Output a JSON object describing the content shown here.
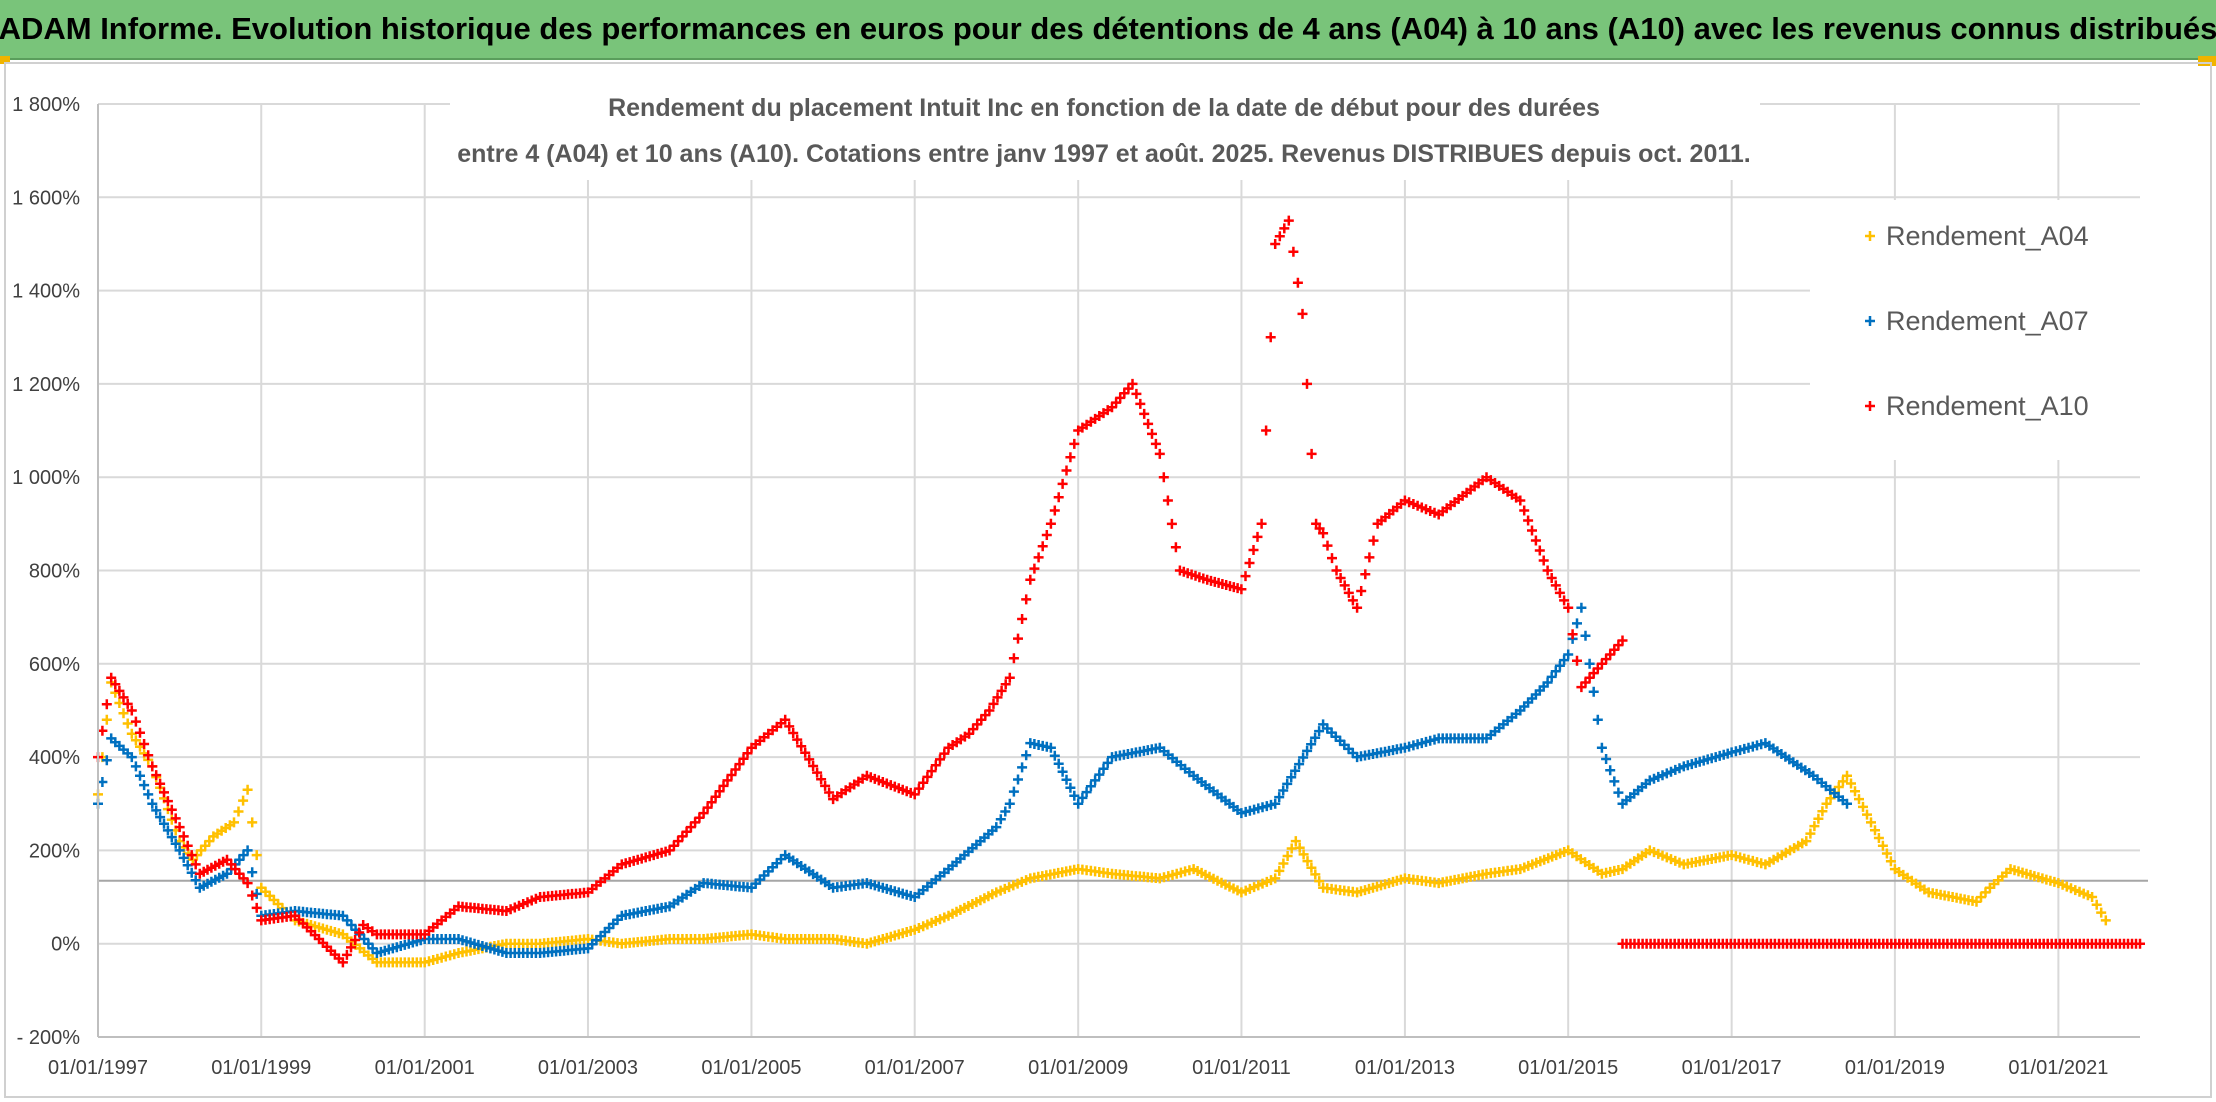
{
  "header": {
    "title": "ADAM Informe. Evolution historique des performances en euros pour des détentions de 4 ans (A04) à 10 ans (A10) avec les revenus connus distribués"
  },
  "chart_data": {
    "type": "scatter",
    "title_line1": "Rendement du placement Intuit Inc en fonction de la date de début pour des durées",
    "title_line2": "entre 4 (A04) et 10 ans (A10). Cotations entre janv 1997 et août. 2025. Revenus DISTRIBUES depuis oct. 2011.",
    "xlabel": "",
    "ylabel": "",
    "y_unit": "%",
    "ylim": [
      -200,
      1800
    ],
    "xlim": [
      "1997-01-01",
      "2022-01-01"
    ],
    "y_ticks": [
      -200,
      0,
      200,
      400,
      600,
      800,
      1000,
      1200,
      1400,
      1600,
      1800
    ],
    "y_tick_labels": [
      "- 200%",
      "0%",
      "200%",
      "400%",
      "600%",
      "800%",
      "1 000%",
      "1 200%",
      "1 400%",
      "1 600%",
      "1 800%"
    ],
    "x_ticks": [
      "1997-01-01",
      "1999-01-01",
      "2001-01-01",
      "2003-01-01",
      "2005-01-01",
      "2007-01-01",
      "2009-01-01",
      "2011-01-01",
      "2013-01-01",
      "2015-01-01",
      "2017-01-01",
      "2019-01-01",
      "2021-01-01"
    ],
    "x_tick_labels": [
      "01/01/1997",
      "01/01/1999",
      "01/01/2001",
      "01/01/2003",
      "01/01/2005",
      "01/01/2007",
      "01/01/2009",
      "01/01/2011",
      "01/01/2013",
      "01/01/2015",
      "01/01/2017",
      "01/01/2019",
      "01/01/2021"
    ],
    "grid": true,
    "marker": "+",
    "reference_line_y": 135,
    "legend_position": "right",
    "series": [
      {
        "name": "Rendement_A04",
        "color": "#ffc000",
        "x": [
          "1997-01-01",
          "1997-03-01",
          "1997-06-01",
          "1997-09-01",
          "1998-01-01",
          "1998-03-01",
          "1998-06-01",
          "1998-09-01",
          "1998-11-01",
          "1999-01-01",
          "1999-06-01",
          "2000-01-01",
          "2000-06-01",
          "2001-01-01",
          "2001-06-01",
          "2002-01-01",
          "2002-06-01",
          "2003-01-01",
          "2003-06-01",
          "2004-01-01",
          "2004-06-01",
          "2005-01-01",
          "2005-06-01",
          "2006-01-01",
          "2006-06-01",
          "2007-01-01",
          "2007-06-01",
          "2008-01-01",
          "2008-06-01",
          "2009-01-01",
          "2009-06-01",
          "2010-01-01",
          "2010-06-01",
          "2011-01-01",
          "2011-06-01",
          "2011-09-01",
          "2012-01-01",
          "2012-06-01",
          "2013-01-01",
          "2013-06-01",
          "2014-01-01",
          "2014-06-01",
          "2015-01-01",
          "2015-06-01",
          "2015-09-01",
          "2016-01-01",
          "2016-06-01",
          "2017-01-01",
          "2017-06-01",
          "2017-12-01",
          "2018-03-01",
          "2018-06-01",
          "2019-01-01",
          "2019-06-01",
          "2020-01-01",
          "2020-03-01",
          "2020-06-01",
          "2021-01-01",
          "2021-06-01",
          "2021-08-01"
        ],
        "y": [
          320,
          560,
          450,
          380,
          220,
          180,
          230,
          260,
          330,
          120,
          50,
          20,
          -40,
          -40,
          -20,
          0,
          0,
          10,
          0,
          10,
          10,
          20,
          10,
          10,
          0,
          30,
          60,
          110,
          140,
          160,
          150,
          140,
          160,
          110,
          140,
          220,
          120,
          110,
          140,
          130,
          150,
          160,
          200,
          150,
          160,
          200,
          170,
          190,
          170,
          220,
          300,
          360,
          160,
          110,
          90,
          120,
          160,
          130,
          100,
          50
        ]
      },
      {
        "name": "Rendement_A07",
        "color": "#0070c0",
        "x": [
          "1997-01-01",
          "1997-03-01",
          "1997-06-01",
          "1997-09-01",
          "1998-01-01",
          "1998-04-01",
          "1998-08-01",
          "1998-11-01",
          "1999-01-01",
          "1999-06-01",
          "2000-01-01",
          "2000-06-01",
          "2001-01-01",
          "2001-06-01",
          "2002-01-01",
          "2002-06-01",
          "2003-01-01",
          "2003-06-01",
          "2004-01-01",
          "2004-06-01",
          "2005-01-01",
          "2005-06-01",
          "2006-01-01",
          "2006-06-01",
          "2007-01-01",
          "2007-06-01",
          "2008-01-01",
          "2008-03-01",
          "2008-06-01",
          "2008-09-01",
          "2009-01-01",
          "2009-06-01",
          "2010-01-01",
          "2010-06-01",
          "2011-01-01",
          "2011-06-01",
          "2012-01-01",
          "2012-06-01",
          "2013-01-01",
          "2013-06-01",
          "2014-01-01",
          "2014-06-01",
          "2014-10-01",
          "2015-01-01",
          "2015-03-01",
          "2015-06-01",
          "2015-09-01",
          "2016-01-01",
          "2016-06-01",
          "2017-01-01",
          "2017-06-01",
          "2018-01-01",
          "2018-06-01"
        ],
        "y": [
          300,
          440,
          400,
          300,
          200,
          120,
          150,
          200,
          60,
          70,
          60,
          -20,
          10,
          10,
          -20,
          -20,
          -10,
          60,
          80,
          130,
          120,
          190,
          120,
          130,
          100,
          160,
          250,
          300,
          430,
          420,
          300,
          400,
          420,
          360,
          280,
          300,
          470,
          400,
          420,
          440,
          440,
          500,
          560,
          620,
          720,
          420,
          300,
          350,
          380,
          410,
          430,
          360,
          300
        ]
      },
      {
        "name": "Rendement_A10",
        "color": "#ff0000",
        "x": [
          "1997-01-01",
          "1997-03-01",
          "1997-06-01",
          "1997-09-01",
          "1998-01-01",
          "1998-04-01",
          "1998-08-01",
          "1998-11-01",
          "1999-01-01",
          "1999-06-01",
          "2000-01-01",
          "2000-04-01",
          "2000-06-01",
          "2001-01-01",
          "2001-06-01",
          "2002-01-01",
          "2002-06-01",
          "2003-01-01",
          "2003-06-01",
          "2004-01-01",
          "2004-06-01",
          "2005-01-01",
          "2005-06-01",
          "2006-01-01",
          "2006-06-01",
          "2007-01-01",
          "2007-06-01",
          "2007-09-01",
          "2007-12-01",
          "2008-03-01",
          "2008-06-01",
          "2008-09-01",
          "2009-01-01",
          "2009-06-01",
          "2009-09-01",
          "2010-01-01",
          "2010-04-01",
          "2010-08-01",
          "2011-01-01",
          "2011-04-01",
          "2011-06-01",
          "2011-08-01",
          "2011-10-01",
          "2011-12-01",
          "2012-01-01",
          "2012-03-01",
          "2012-06-01",
          "2012-09-01",
          "2013-01-01",
          "2013-06-01",
          "2014-01-01",
          "2014-06-01",
          "2014-10-01",
          "2015-01-01",
          "2015-03-01",
          "2015-06-01",
          "2015-09-01"
        ],
        "y": [
          400,
          570,
          500,
          380,
          250,
          150,
          180,
          130,
          50,
          60,
          -40,
          40,
          20,
          20,
          80,
          70,
          100,
          110,
          170,
          200,
          280,
          420,
          480,
          310,
          360,
          320,
          420,
          450,
          500,
          570,
          780,
          900,
          1100,
          1150,
          1200,
          1050,
          800,
          780,
          760,
          900,
          1500,
          1550,
          1350,
          900,
          880,
          800,
          720,
          900,
          950,
          920,
          1000,
          950,
          800,
          720,
          550,
          600,
          650
        ]
      },
      {
        "name": "Rendement_A10 (zero)",
        "color": "#ff0000",
        "x": [
          "2015-09-01",
          "2022-01-01"
        ],
        "y": [
          0,
          0
        ]
      }
    ]
  },
  "legend": [
    {
      "label": "Rendement_A04",
      "color": "#ffc000"
    },
    {
      "label": "Rendement_A07",
      "color": "#0070c0"
    },
    {
      "label": "Rendement_A10",
      "color": "#ff0000"
    }
  ]
}
